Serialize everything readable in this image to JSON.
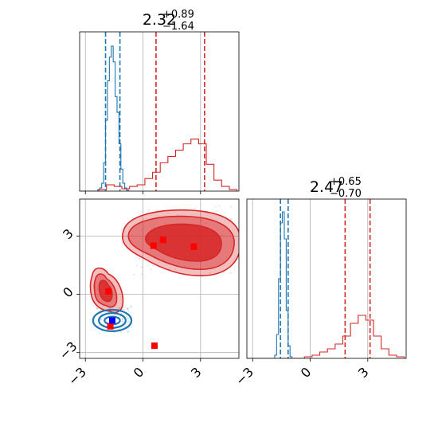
{
  "chart_data": {
    "type": "corner",
    "colors": {
      "blue": "#1f77b4",
      "red": "#d62728",
      "marker_red": "#ff0000",
      "marker_blue": "#0000ff",
      "grid": "#b0b0b0"
    },
    "xlim": [
      -3.3,
      5.0
    ],
    "ylim_joint": [
      -3.3,
      4.9
    ],
    "ticks": [
      -3,
      0,
      3
    ],
    "tick_labels": [
      "−3",
      "0",
      "3"
    ],
    "panels": [
      {
        "name": "marginal-top",
        "title_value": "2.32",
        "title_plus": "+0.89",
        "title_minus": "−1.64",
        "blue_lines": [
          -1.95,
          -1.2
        ],
        "red_lines": [
          0.68,
          3.21
        ],
        "blue_hist": {
          "x": [
            -2.4,
            -2.3,
            -2.2,
            -2.1,
            -2.0,
            -1.9,
            -1.8,
            -1.7,
            -1.6,
            -1.5,
            -1.4,
            -1.3,
            -1.2,
            -1.1,
            -1.0,
            -0.9,
            -0.8,
            -0.7
          ],
          "y": [
            0.0,
            0.01,
            0.02,
            0.05,
            0.18,
            0.45,
            0.7,
            0.85,
            0.92,
            0.82,
            0.6,
            0.5,
            0.3,
            0.14,
            0.05,
            0.02,
            0.005,
            0.0
          ]
        },
        "red_hist": {
          "x": [
            -3.3,
            -2.9,
            -2.5,
            -2.1,
            -1.7,
            -1.3,
            -0.9,
            -0.5,
            -0.1,
            0.3,
            0.7,
            1.1,
            1.5,
            1.9,
            2.3,
            2.7,
            3.1,
            3.5,
            3.9,
            4.3,
            4.7
          ],
          "y": [
            0.0,
            0.0,
            0.0,
            0.01,
            0.04,
            0.03,
            0.015,
            0.03,
            0.04,
            0.08,
            0.12,
            0.18,
            0.22,
            0.26,
            0.3,
            0.33,
            0.3,
            0.17,
            0.07,
            0.03,
            0.01
          ]
        }
      },
      {
        "name": "marginal-bottom",
        "title_value": "2.47",
        "title_plus": "+0.65",
        "title_minus": "−0.70",
        "blue_lines": [
          -1.55,
          -1.15
        ],
        "red_lines": [
          1.82,
          3.12
        ],
        "blue_hist": {
          "x": [
            -1.9,
            -1.8,
            -1.7,
            -1.6,
            -1.5,
            -1.4,
            -1.3,
            -1.2,
            -1.1,
            -1.0,
            -0.9
          ],
          "y": [
            0.0,
            0.02,
            0.15,
            0.5,
            0.85,
            0.92,
            0.75,
            0.3,
            0.08,
            0.01,
            0.0
          ]
        },
        "red_hist": {
          "x": [
            -3.3,
            -2.9,
            -2.5,
            -2.1,
            -1.7,
            -1.3,
            -0.9,
            -0.5,
            -0.1,
            0.3,
            0.7,
            1.1,
            1.5,
            1.9,
            2.3,
            2.7,
            3.1,
            3.5,
            3.9,
            4.3,
            4.7
          ],
          "y": [
            0.0,
            0.0,
            0.0,
            0.0,
            0.0,
            0.0,
            0.0,
            0.0,
            0.01,
            0.02,
            0.04,
            0.06,
            0.09,
            0.14,
            0.22,
            0.27,
            0.24,
            0.14,
            0.06,
            0.02,
            0.01
          ]
        }
      }
    ],
    "joint": {
      "red_markers": [
        [
          -1.8,
          0.15
        ],
        [
          -1.7,
          -1.65
        ],
        [
          0.55,
          2.5
        ],
        [
          1.05,
          2.8
        ],
        [
          2.65,
          2.45
        ],
        [
          0.6,
          -2.65
        ]
      ],
      "blue_markers": [
        [
          -1.6,
          -1.35
        ]
      ],
      "blue_contours": [
        {
          "cx": -1.6,
          "cy": -1.35,
          "rx": 1.0,
          "ry": 0.55
        },
        {
          "cx": -1.6,
          "cy": -1.35,
          "rx": 0.7,
          "ry": 0.38
        },
        {
          "cx": -1.6,
          "cy": -1.35,
          "rx": 0.4,
          "ry": 0.2
        }
      ]
    }
  }
}
